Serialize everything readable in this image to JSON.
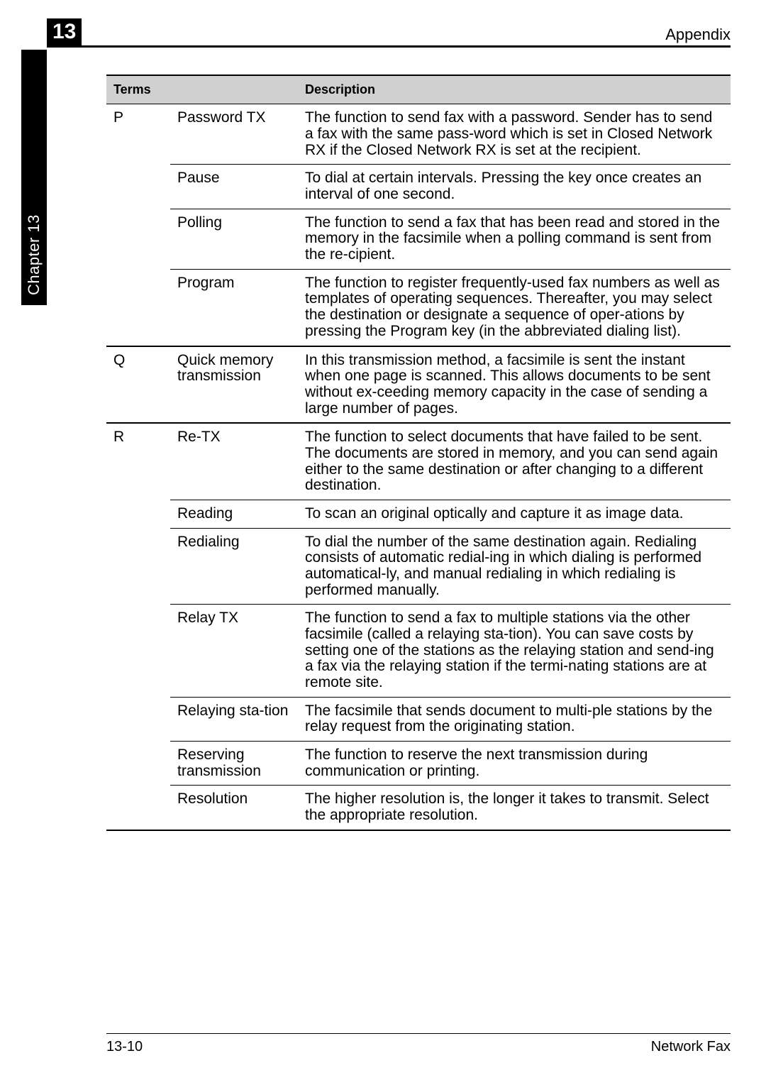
{
  "chapter_number": "13",
  "header_right": "Appendix",
  "side_tab_text": "Chapter 13",
  "side_label": "Appendix",
  "table": {
    "header_terms": "Terms",
    "header_description": "Description",
    "rows": [
      {
        "letter": "P",
        "term": "Password TX",
        "desc": "The function to send fax with a password. Sender has to send a fax with the same pass-word which is set in Closed Network RX if the Closed Network RX is set at the recipient.",
        "group_end": false
      },
      {
        "letter": "",
        "term": "Pause",
        "desc": "To dial at certain intervals. Pressing the key once creates an interval of one second.",
        "group_end": false
      },
      {
        "letter": "",
        "term": "Polling",
        "desc": "The function to send a fax that has been read and stored in the memory in the facsimile when a polling command is sent from the re-cipient.",
        "group_end": false
      },
      {
        "letter": "",
        "term": "Program",
        "desc": "The function to register frequently-used fax numbers as well as templates of operating sequences. Thereafter, you may select the destination or designate a sequence of oper-ations by pressing the Program key (in the abbreviated dialing list).",
        "group_end": true
      },
      {
        "letter": "Q",
        "term": "Quick memory transmission",
        "desc": "In this transmission method, a facsimile is sent the instant when one page is scanned. This allows documents to be sent without ex-ceeding memory capacity in the case of sending a large number of pages.",
        "group_end": true
      },
      {
        "letter": "R",
        "term": "Re-TX",
        "desc": "The function to select documents that have failed to be sent. The documents are stored in memory, and you can send again either to the same destination or after changing to a different destination.",
        "group_end": false
      },
      {
        "letter": "",
        "term": "Reading",
        "desc": "To scan an original optically and capture it as image data.",
        "group_end": false
      },
      {
        "letter": "",
        "term": "Redialing",
        "desc": "To dial the number of the same destination again. Redialing consists of automatic redial-ing in which dialing is performed automatical-ly, and manual redialing in which redialing is performed manually.",
        "group_end": false
      },
      {
        "letter": "",
        "term": "Relay TX",
        "desc": "The function to send a fax to multiple stations via the other facsimile (called a relaying sta-tion). You can save costs by setting one of the stations as the relaying station and send-ing a fax via the relaying station if the termi-nating stations are at remote site.",
        "group_end": false
      },
      {
        "letter": "",
        "term": "Relaying sta-tion",
        "desc": "The facsimile that sends document to multi-ple stations by the relay request from the originating station.",
        "group_end": false
      },
      {
        "letter": "",
        "term": "Reserving transmission",
        "desc": "The function to reserve the next transmission during communication or printing.",
        "group_end": false
      },
      {
        "letter": "",
        "term": "Resolution",
        "desc": "The higher resolution is, the longer it takes to transmit. Select the appropriate resolution.",
        "group_end": true
      }
    ]
  },
  "footer_left": "13-10",
  "footer_right": "Network Fax"
}
